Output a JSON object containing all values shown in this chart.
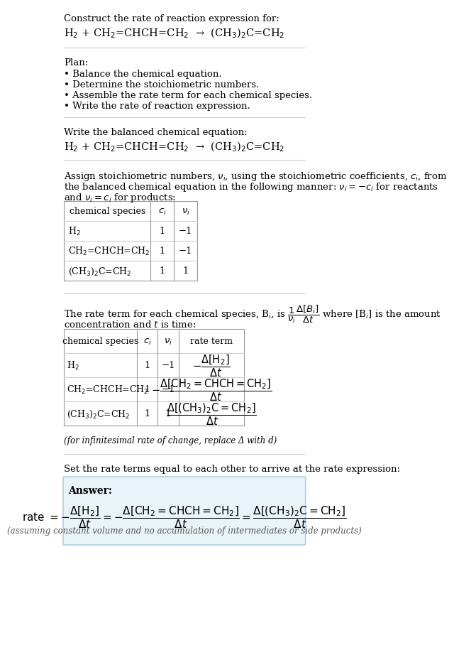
{
  "title_line1": "Construct the rate of reaction expression for:",
  "title_line2": "H$_2$ + CH$_2$=CHCH=CH$_2$  →  (CH$_3$)$_2$C=CH$_2$",
  "plan_header": "Plan:",
  "plan_items": [
    "• Balance the chemical equation.",
    "• Determine the stoichiometric numbers.",
    "• Assemble the rate term for each chemical species.",
    "• Write the rate of reaction expression."
  ],
  "balanced_header": "Write the balanced chemical equation:",
  "balanced_eq": "H$_2$ + CH$_2$=CHCH=CH$_2$  →  (CH$_3$)$_2$C=CH$_2$",
  "assign_text1": "Assign stoichiometric numbers, $\\nu_i$, using the stoichiometric coefficients, $c_i$, from",
  "assign_text2": "the balanced chemical equation in the following manner: $\\nu_i = -c_i$ for reactants",
  "assign_text3": "and $\\nu_i = c_i$ for products:",
  "table1_headers": [
    "chemical species",
    "$c_i$",
    "$\\nu_i$"
  ],
  "table1_rows": [
    [
      "H$_2$",
      "1",
      "−1"
    ],
    [
      "CH$_2$=CHCH=CH$_2$",
      "1",
      "−1"
    ],
    [
      "(CH$_3$)$_2$C=CH$_2$",
      "1",
      "1"
    ]
  ],
  "rate_text1": "The rate term for each chemical species, B$_i$, is $\\dfrac{1}{\\nu_i}\\dfrac{\\Delta[B_i]}{\\Delta t}$ where [B$_i$] is the amount",
  "rate_text2": "concentration and $t$ is time:",
  "table2_headers": [
    "chemical species",
    "$c_i$",
    "$\\nu_i$",
    "rate term"
  ],
  "table2_rows": [
    [
      "H$_2$",
      "1",
      "−1",
      "$-\\dfrac{\\Delta[H_2]}{\\Delta t}$"
    ],
    [
      "CH$_2$=CHCH=CH$_2$",
      "1",
      "−1",
      "$-\\dfrac{\\Delta[CH_2{=}CHCH{=}CH_2]}{\\Delta t}$"
    ],
    [
      "(CH$_3$)$_2$C=CH$_2$",
      "1",
      "1",
      "$\\dfrac{\\Delta[(CH_3)_2C{=}CH_2]}{\\Delta t}$"
    ]
  ],
  "infinitesimal_note": "(for infinitesimal rate of change, replace Δ with d)",
  "set_rate_text": "Set the rate terms equal to each other to arrive at the rate expression:",
  "answer_label": "Answer:",
  "answer_eq": "rate $= -\\dfrac{\\Delta[H_2]}{\\Delta t} = -\\dfrac{\\Delta[CH_2{=}CHCH{=}CH_2]}{\\Delta t} = \\dfrac{\\Delta[(CH_3)_2C{=}CH_2]}{\\Delta t}$",
  "answer_note": "(assuming constant volume and no accumulation of intermediates or side products)",
  "answer_bg": "#e8f4f8",
  "answer_border": "#b0d0e0",
  "bg_color": "#ffffff",
  "text_color": "#000000",
  "table_line_color": "#999999",
  "font_size": 9.5,
  "small_font_size": 8.5
}
